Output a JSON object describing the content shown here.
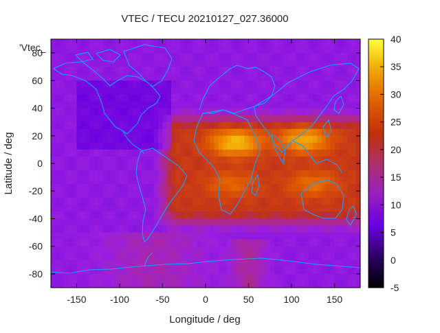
{
  "chart_data": {
    "type": "heatmap",
    "title": "VTEC / TECU 20210127_027.36000",
    "xlabel": "Longitude / deg",
    "ylabel": "Latitude / deg",
    "key_label": "'Vtec_",
    "xlim": [
      -180,
      180
    ],
    "ylim": [
      -90,
      90
    ],
    "x_ticks": [
      -150,
      -100,
      -50,
      0,
      50,
      100,
      150
    ],
    "y_ticks": [
      -80,
      -60,
      -40,
      -20,
      0,
      20,
      40,
      60,
      80
    ],
    "x_tick_labels": [
      "-150",
      "-100",
      "-50",
      "0",
      "50",
      "100",
      "150"
    ],
    "y_tick_labels": [
      "-80",
      "-60",
      "-40",
      "-20",
      "0",
      "20",
      "40",
      "60",
      "80"
    ],
    "colorbar": {
      "range": [
        -5,
        40
      ],
      "ticks": [
        40,
        35,
        30,
        25,
        20,
        15,
        10,
        5,
        0,
        -5
      ],
      "tick_labels": [
        "40",
        "35",
        "30",
        "25",
        "20",
        "15",
        "10",
        "5",
        "0",
        "-5"
      ],
      "palette": "gnuplot-pm3d-black-purple-red-orange-yellow"
    },
    "field_features": {
      "background_level": 9,
      "equatorial_anomaly_peaks": [
        {
          "lon": 35,
          "lat": 15,
          "value": 32
        },
        {
          "lon": 115,
          "lat": 17,
          "value": 30
        },
        {
          "lon": 30,
          "lat": -15,
          "value": 23
        },
        {
          "lon": 125,
          "lat": -15,
          "value": 24
        }
      ],
      "enhancement_region": {
        "lon_range": [
          -35,
          175
        ],
        "lat_range": [
          -35,
          25
        ],
        "value": 18
      },
      "low_region": {
        "lon_range": [
          -150,
          -40
        ],
        "lat_range": [
          10,
          60
        ],
        "value": 5
      }
    },
    "coastline_color": "#1a9fff"
  }
}
